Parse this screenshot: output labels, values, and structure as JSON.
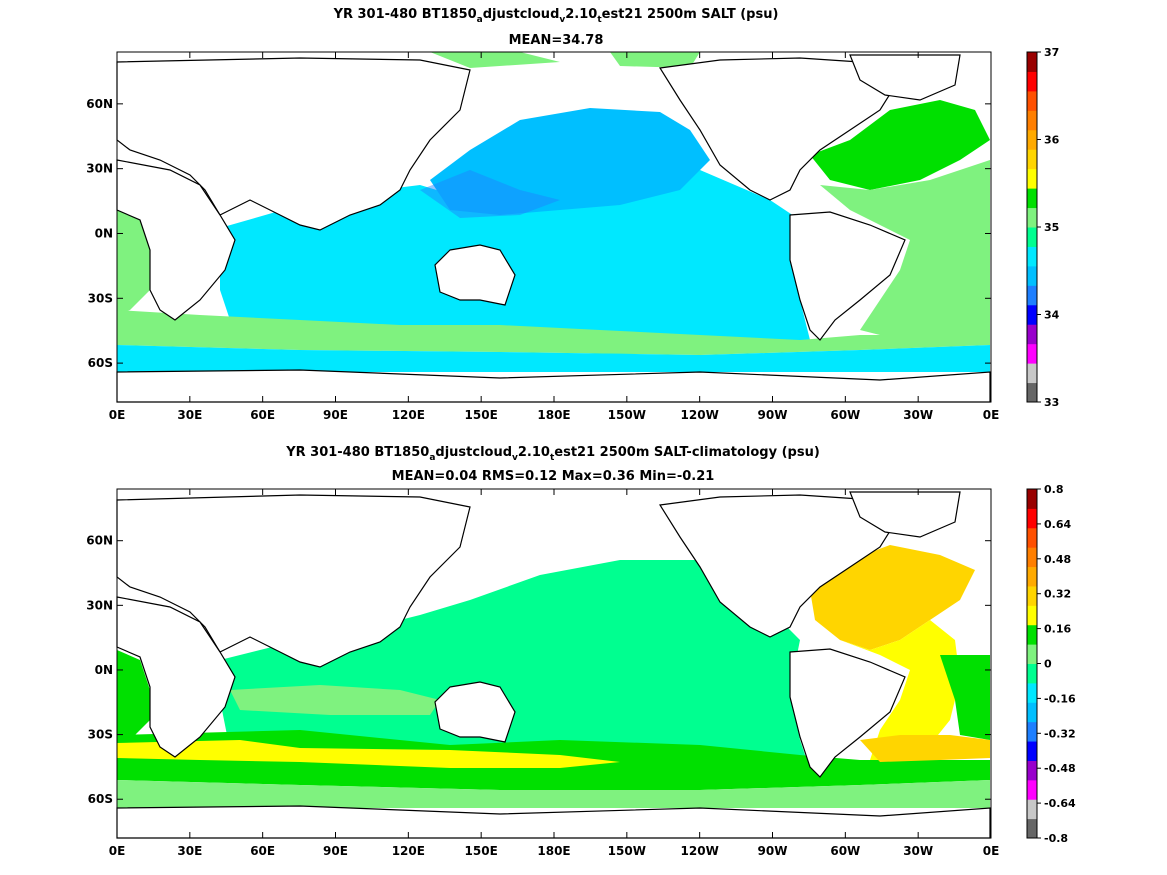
{
  "chart_data": [
    {
      "type": "heatmap",
      "title_parts": [
        "YR 301-480 BT1850",
        "a",
        "djustcloud",
        "v",
        "2.10",
        "t",
        "est21 2500m SALT (psu)"
      ],
      "subtitle": "MEAN=34.78",
      "x_ticks": [
        "0E",
        "30E",
        "60E",
        "90E",
        "120E",
        "150E",
        "180E",
        "150W",
        "120W",
        "90W",
        "60W",
        "30W",
        "0E"
      ],
      "y_ticks": [
        "60N",
        "30N",
        "0N",
        "30S",
        "60S"
      ],
      "colorbar": {
        "range": [
          33,
          37
        ],
        "labels": [
          "37",
          "36",
          "35",
          "34",
          "33"
        ],
        "colors": [
          "#666666",
          "#c8c8c8",
          "#ff00ff",
          "#9900cc",
          "#0000ff",
          "#1e7fff",
          "#00bfff",
          "#00e8ff",
          "#00ff90",
          "#7ff27f",
          "#00e000",
          "#ffff00",
          "#ffd500",
          "#ffaa00",
          "#ff7f00",
          "#ff5000",
          "#ff0000",
          "#990000"
        ]
      }
    },
    {
      "type": "heatmap",
      "title_parts": [
        "YR 301-480 BT1850",
        "a",
        "djustcloud",
        "v",
        "2.10",
        "t",
        "est21 2500m SALT-climatology (psu)"
      ],
      "subtitle": "MEAN=0.04   RMS=0.12   Max=0.36   Min=-0.21",
      "x_ticks": [
        "0E",
        "30E",
        "60E",
        "90E",
        "120E",
        "150E",
        "180E",
        "150W",
        "120W",
        "90W",
        "60W",
        "30W",
        "0E"
      ],
      "y_ticks": [
        "60N",
        "30N",
        "0N",
        "30S",
        "60S"
      ],
      "colorbar": {
        "range": [
          -0.8,
          0.8
        ],
        "labels": [
          "0.8",
          "0.64",
          "0.48",
          "0.32",
          "0.16",
          "0",
          "-0.16",
          "-0.32",
          "-0.48",
          "-0.64",
          "-0.8"
        ],
        "colors": [
          "#666666",
          "#c8c8c8",
          "#ff00ff",
          "#9900cc",
          "#0000ff",
          "#1e7fff",
          "#00bfff",
          "#00e8ff",
          "#00ff90",
          "#7ff27f",
          "#00e000",
          "#ffff00",
          "#ffd500",
          "#ffaa00",
          "#ff7f00",
          "#ff5000",
          "#ff0000",
          "#990000"
        ]
      }
    }
  ],
  "map_colors": {
    "land": "#ffffff",
    "coast": "#000000",
    "ice_mask": "#ffffff"
  }
}
